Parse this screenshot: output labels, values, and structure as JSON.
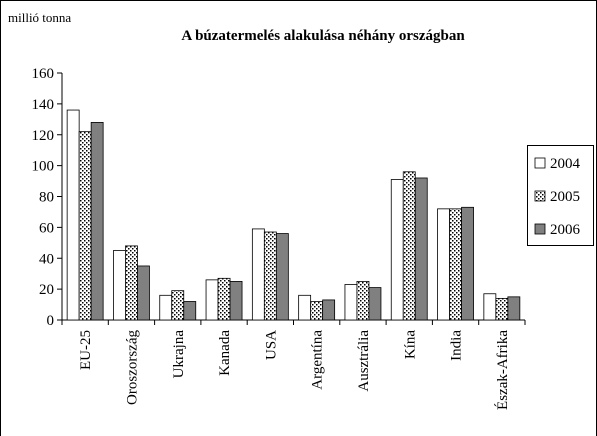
{
  "chart_data": {
    "type": "bar",
    "title": "A búzatermelés alakulása néhány országban",
    "y_label": "millió tonna",
    "categories": [
      "EU-25",
      "Oroszország",
      "Ukrajna",
      "Kanada",
      "USA",
      "Argentína",
      "Ausztrália",
      "Kína",
      "India",
      "Észak-Afrika"
    ],
    "series": [
      {
        "name": "2004",
        "color": "#ffffff",
        "values": [
          136,
          45,
          16,
          26,
          59,
          16,
          23,
          91,
          72,
          17
        ]
      },
      {
        "name": "2005",
        "color": "#ffffff",
        "pattern": "dots",
        "values": [
          122,
          48,
          19,
          27,
          57,
          12,
          25,
          96,
          72,
          14
        ]
      },
      {
        "name": "2006",
        "color": "#808080",
        "values": [
          128,
          35,
          12,
          25,
          56,
          13,
          21,
          92,
          73,
          15
        ]
      }
    ],
    "ylim": [
      0,
      160
    ],
    "yticks": [
      0,
      20,
      40,
      60,
      80,
      100,
      120,
      140,
      160
    ],
    "grid": false,
    "legend": "right"
  }
}
